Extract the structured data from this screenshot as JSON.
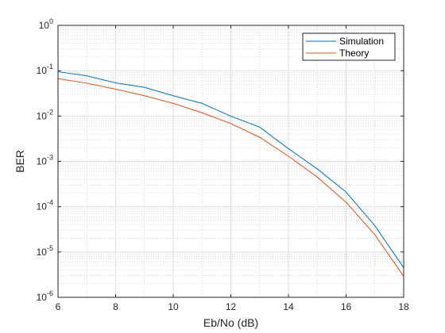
{
  "chart_data": {
    "type": "line",
    "xlabel": "Eb/No (dB)",
    "ylabel": "BER",
    "xlim": [
      6,
      18
    ],
    "ylim": [
      1e-06,
      1
    ],
    "yscale": "log",
    "x_ticks": [
      6,
      8,
      10,
      12,
      14,
      16,
      18
    ],
    "y_tick_exponents": [
      0,
      -1,
      -2,
      -3,
      -4,
      -5,
      -6
    ],
    "y_tick_base": "10",
    "grid": true,
    "minor_grid": true,
    "legend_position": "top-right",
    "x": [
      6,
      7,
      8,
      9,
      10,
      11,
      12,
      13,
      14,
      15,
      16,
      17,
      18
    ],
    "series": [
      {
        "name": "Simulation",
        "color": "#0072BD",
        "values": [
          0.095,
          0.077,
          0.054,
          0.043,
          0.028,
          0.019,
          0.0099,
          0.0057,
          0.0019,
          0.00068,
          0.00021,
          3.8e-05,
          4.5e-06
        ]
      },
      {
        "name": "Theory",
        "color": "#D95319",
        "values": [
          0.067,
          0.053,
          0.039,
          0.028,
          0.019,
          0.0118,
          0.0068,
          0.0034,
          0.0013,
          0.00045,
          0.000125,
          2.4e-05,
          2.9e-06
        ]
      }
    ]
  }
}
